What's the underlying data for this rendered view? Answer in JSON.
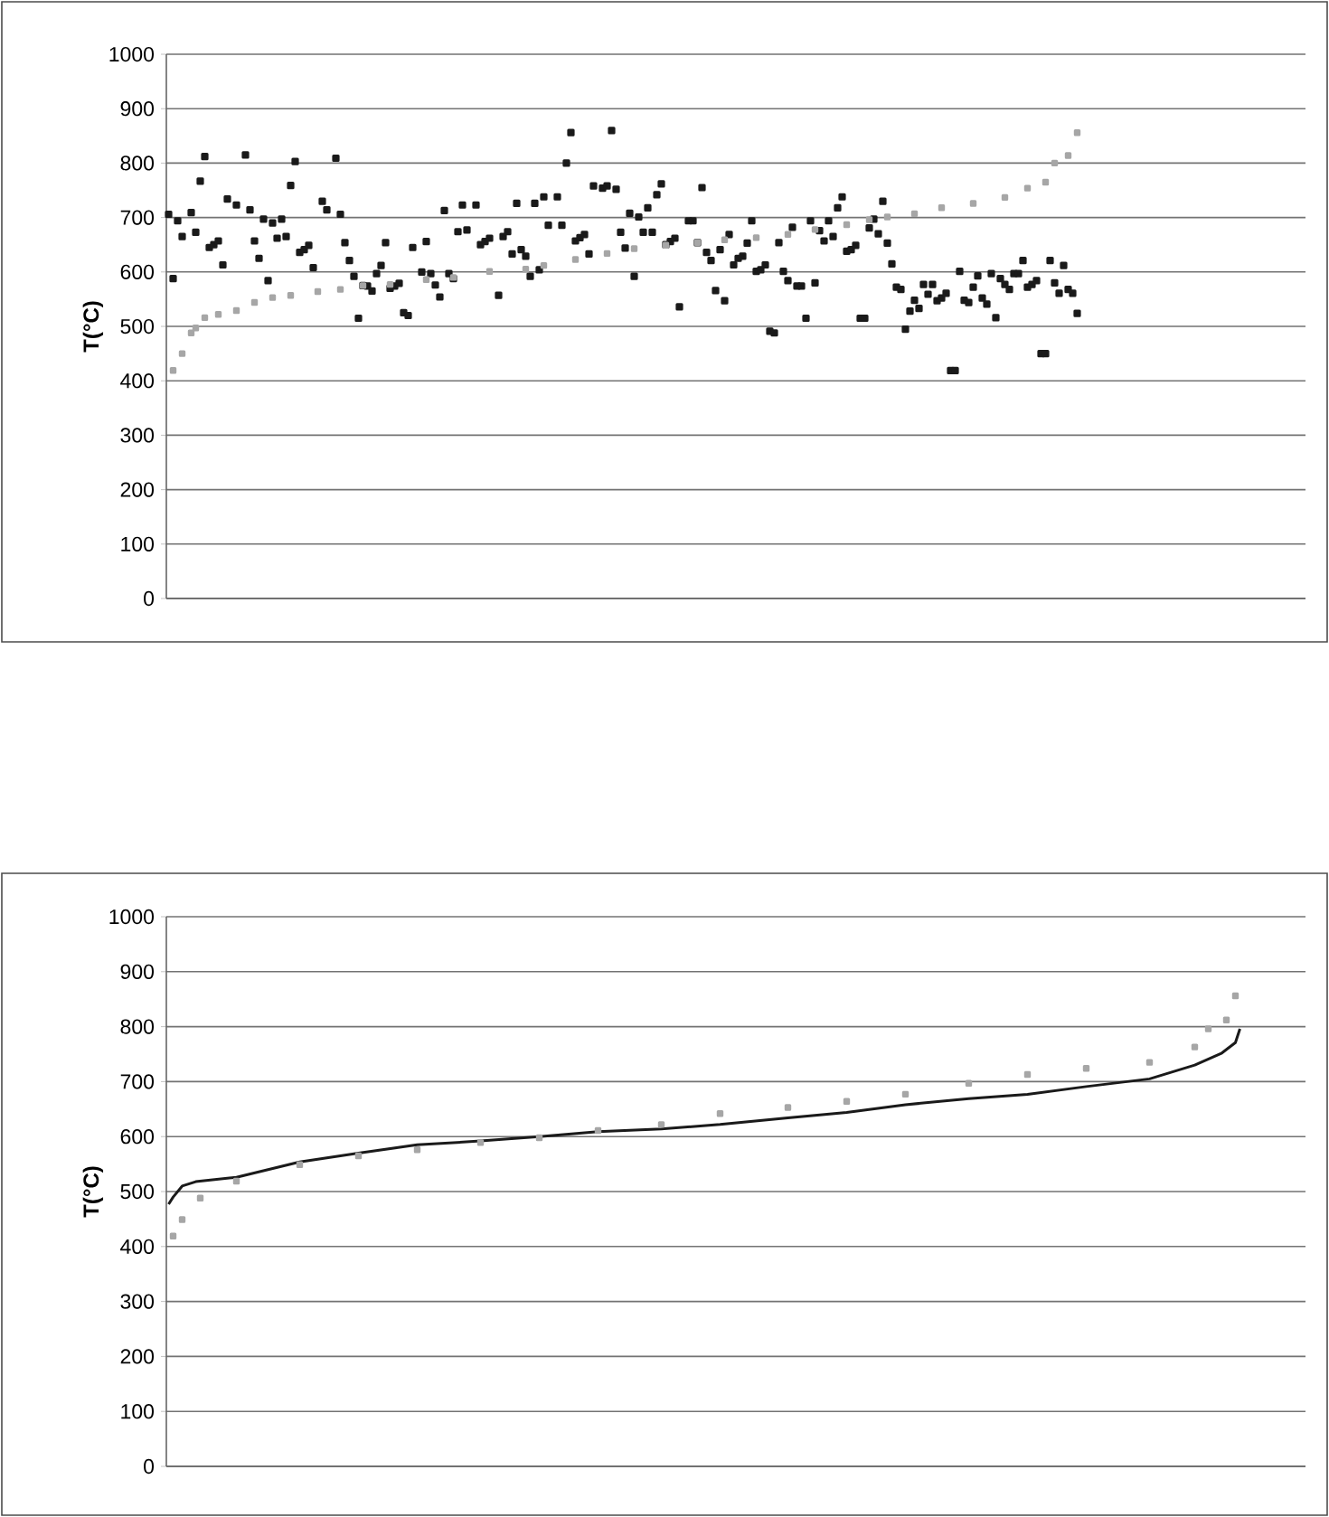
{
  "chart_data": [
    {
      "type": "scatter",
      "ylabel": "T(°C)",
      "ylim": [
        0,
        1000
      ],
      "yticks": [
        0,
        100,
        200,
        300,
        400,
        500,
        600,
        700,
        800,
        900,
        1000
      ],
      "grid": "y",
      "tick_labels": "y",
      "marker": "square",
      "categories": [
        null,
        null,
        null,
        null,
        null,
        null,
        null,
        null,
        null,
        null,
        null,
        null,
        null,
        null,
        null,
        null,
        null,
        null,
        null,
        null,
        null,
        null,
        null,
        null,
        null,
        null,
        null,
        null,
        null,
        null,
        null,
        null,
        null,
        null,
        null,
        null,
        null,
        null,
        null,
        null,
        null,
        null,
        null,
        null,
        null,
        null,
        null,
        null,
        null,
        null,
        null,
        null,
        null,
        null,
        null,
        null,
        null,
        null,
        null,
        null,
        null,
        null,
        null,
        null,
        null,
        null,
        null,
        null,
        null,
        null,
        null,
        null,
        null,
        null,
        null,
        null,
        null,
        null,
        null,
        null,
        null,
        null,
        null,
        null,
        null,
        null,
        null,
        null,
        null,
        null,
        null,
        null,
        null,
        null,
        null,
        null,
        null,
        null,
        null,
        null,
        null,
        null,
        null,
        null,
        null,
        null,
        null,
        null,
        null,
        null,
        null,
        null,
        null,
        null,
        null,
        null,
        null,
        null,
        null,
        null,
        null,
        null,
        null,
        null,
        null,
        null,
        null,
        null,
        null,
        null,
        null,
        null,
        null,
        null,
        null,
        null,
        null,
        null,
        null,
        null,
        null,
        null,
        null,
        null,
        null,
        null,
        null,
        null,
        null,
        null,
        null,
        null,
        null,
        null,
        null,
        null,
        null,
        null,
        null,
        null,
        null,
        null,
        null,
        null,
        null,
        null,
        null,
        null,
        null,
        null,
        null,
        null,
        null,
        null,
        null,
        null,
        null,
        null,
        null,
        null,
        null,
        null,
        null,
        null,
        null,
        null,
        null,
        null,
        null,
        null,
        null,
        null,
        null,
        null,
        null,
        null,
        null,
        null,
        null,
        null,
        null,
        null,
        null,
        null,
        null,
        null,
        null,
        null,
        null,
        null,
        null,
        null,
        null,
        null,
        null,
        null,
        null,
        null,
        null,
        null,
        null,
        null,
        null,
        null,
        null,
        null,
        null,
        null,
        null,
        null,
        null,
        null,
        null,
        null,
        null,
        null,
        null,
        null,
        null,
        null,
        null,
        null,
        null,
        null,
        null,
        null,
        null,
        null,
        null,
        null,
        null,
        null
      ],
      "series": [
        {
          "color": "#1a1a1a",
          "values": [
            706,
            588,
            694,
            665,
            null,
            709,
            673,
            767,
            812,
            645,
            650,
            657,
            613,
            734,
            null,
            723,
            null,
            815,
            714,
            657,
            625,
            697,
            584,
            690,
            662,
            697,
            665,
            759,
            803,
            636,
            641,
            649,
            608,
            null,
            730,
            714,
            null,
            809,
            706,
            654,
            621,
            592,
            515,
            575,
            574,
            565,
            597,
            612,
            654,
            570,
            574,
            579,
            525,
            520,
            645,
            null,
            600,
            656,
            597,
            576,
            554,
            713,
            597,
            588,
            674,
            723,
            677,
            null,
            723,
            650,
            656,
            662,
            null,
            557,
            665,
            674,
            633,
            726,
            641,
            629,
            592,
            726,
            604,
            738,
            686,
            null,
            738,
            686,
            800,
            856,
            657,
            663,
            669,
            633,
            758,
            null,
            754,
            758,
            860,
            752,
            673,
            644,
            708,
            592,
            701,
            673,
            718,
            673,
            742,
            762,
            650,
            656,
            662,
            536,
            null,
            694,
            694,
            654,
            755,
            636,
            621,
            566,
            641,
            547,
            669,
            613,
            625,
            629,
            653,
            694,
            601,
            604,
            613,
            491,
            488,
            654,
            601,
            584,
            682,
            574,
            574,
            515,
            694,
            580,
            676,
            657,
            694,
            665,
            718,
            738,
            638,
            641,
            649,
            515,
            515,
            681,
            697,
            670,
            730,
            653,
            615,
            572,
            568,
            495,
            528,
            548,
            533,
            577,
            559,
            577,
            547,
            552,
            561,
            419,
            419,
            601,
            548,
            544,
            572,
            593,
            552,
            541,
            597,
            516,
            588,
            577,
            568,
            597,
            597,
            621,
            572,
            577,
            584,
            450,
            450,
            621,
            580,
            561,
            612,
            568,
            561,
            524,
            null,
            null,
            null,
            null,
            null,
            null,
            null,
            null,
            null,
            null,
            null,
            null,
            null,
            null,
            null,
            null,
            null,
            null,
            null,
            null,
            null,
            null,
            null,
            null,
            null,
            null,
            null,
            null,
            null,
            null,
            null,
            null,
            null,
            null,
            null,
            null,
            null,
            null,
            null,
            null,
            null,
            null,
            null,
            null,
            null,
            null,
            null,
            null,
            null,
            null
          ]
        },
        {
          "color": "#a6a6a6",
          "values": [
            null,
            419,
            null,
            450,
            null,
            488,
            497,
            null,
            516,
            null,
            null,
            522,
            null,
            null,
            null,
            529,
            null,
            null,
            null,
            544,
            null,
            null,
            null,
            553,
            null,
            null,
            null,
            557,
            null,
            null,
            null,
            null,
            null,
            564,
            null,
            null,
            null,
            null,
            568,
            null,
            null,
            null,
            null,
            575,
            null,
            null,
            null,
            null,
            null,
            577,
            null,
            null,
            null,
            null,
            null,
            null,
            null,
            586,
            null,
            null,
            null,
            null,
            null,
            590,
            null,
            null,
            null,
            null,
            null,
            null,
            null,
            601,
            null,
            null,
            null,
            null,
            null,
            null,
            null,
            605,
            null,
            null,
            null,
            612,
            null,
            null,
            null,
            null,
            null,
            null,
            623,
            null,
            null,
            null,
            null,
            null,
            null,
            634,
            null,
            null,
            null,
            null,
            null,
            643,
            null,
            null,
            null,
            null,
            null,
            null,
            649,
            null,
            null,
            null,
            null,
            null,
            null,
            654,
            null,
            null,
            null,
            null,
            null,
            659,
            null,
            null,
            null,
            null,
            null,
            null,
            663,
            null,
            null,
            null,
            null,
            null,
            null,
            669,
            null,
            null,
            null,
            null,
            null,
            678,
            null,
            null,
            null,
            null,
            null,
            null,
            687,
            null,
            null,
            null,
            null,
            696,
            null,
            null,
            null,
            701,
            null,
            null,
            null,
            null,
            null,
            707,
            null,
            null,
            null,
            null,
            null,
            718,
            null,
            null,
            null,
            null,
            null,
            null,
            726,
            null,
            null,
            null,
            null,
            null,
            null,
            737,
            null,
            null,
            null,
            null,
            754,
            null,
            null,
            null,
            765,
            null,
            800,
            null,
            null,
            814,
            null,
            856,
            null,
            null,
            null,
            null,
            null,
            null,
            null,
            null,
            null,
            null,
            null,
            null,
            null,
            null,
            null,
            null,
            null,
            null,
            null,
            null,
            null,
            null,
            null,
            null,
            null,
            null,
            null,
            null,
            null,
            null,
            null,
            null,
            null,
            null,
            null,
            null,
            null,
            null,
            null,
            null,
            null,
            null,
            null,
            null,
            null,
            null,
            null,
            null,
            null,
            null
          ]
        }
      ]
    },
    {
      "type": "scatter",
      "ylabel": "T(°C)",
      "ylim": [
        0,
        1000
      ],
      "yticks": [
        0,
        100,
        200,
        300,
        400,
        500,
        600,
        700,
        800,
        900,
        1000
      ],
      "grid": "y",
      "tick_labels": "y",
      "marker": "square",
      "categories": [
        null,
        null,
        null,
        null,
        null,
        null,
        null,
        null,
        null,
        null,
        null,
        null,
        null,
        null,
        null,
        null,
        null,
        null,
        null,
        null,
        null,
        null,
        null,
        null,
        null,
        null,
        null,
        null,
        null,
        null,
        null,
        null,
        null,
        null,
        null,
        null,
        null,
        null,
        null,
        null,
        null,
        null,
        null,
        null,
        null,
        null,
        null,
        null,
        null,
        null,
        null,
        null,
        null,
        null,
        null,
        null,
        null,
        null,
        null,
        null,
        null,
        null,
        null,
        null,
        null,
        null,
        null,
        null,
        null,
        null,
        null,
        null,
        null,
        null,
        null,
        null,
        null,
        null,
        null,
        null,
        null,
        null,
        null,
        null,
        null,
        null,
        null,
        null,
        null,
        null,
        null,
        null,
        null,
        null,
        null,
        null,
        null,
        null,
        null,
        null,
        null,
        null,
        null,
        null,
        null,
        null,
        null,
        null,
        null,
        null,
        null,
        null,
        null,
        null,
        null,
        null,
        null,
        null,
        null,
        null,
        null,
        null,
        null,
        null,
        null,
        null,
        null,
        null,
        null,
        null,
        null,
        null,
        null,
        null,
        null,
        null,
        null,
        null,
        null,
        null,
        null,
        null,
        null,
        null,
        null,
        null,
        null,
        null,
        null,
        null,
        null,
        null,
        null,
        null,
        null,
        null,
        null,
        null,
        null,
        null,
        null,
        null,
        null,
        null,
        null,
        null,
        null,
        null,
        null,
        null,
        null,
        null,
        null,
        null,
        null,
        null,
        null,
        null,
        null,
        null,
        null,
        null,
        null,
        null,
        null,
        null,
        null,
        null,
        null,
        null,
        null,
        null,
        null,
        null,
        null,
        null,
        null,
        null,
        null,
        null,
        null,
        null,
        null,
        null,
        null,
        null,
        null,
        null,
        null,
        null,
        null,
        null,
        null,
        null,
        null,
        null,
        null,
        null,
        null,
        null,
        null,
        null,
        null,
        null,
        null,
        null,
        null,
        null,
        null,
        null,
        null,
        null,
        null,
        null,
        null,
        null,
        null,
        null,
        null,
        null,
        null,
        null,
        null,
        null,
        null,
        null,
        null,
        null,
        null,
        null,
        null,
        null
      ],
      "series": [
        {
          "color": "#a6a6a6",
          "values": [
            null,
            419,
            null,
            449,
            null,
            null,
            null,
            488,
            null,
            null,
            null,
            null,
            null,
            null,
            null,
            519,
            null,
            null,
            null,
            null,
            null,
            null,
            null,
            null,
            null,
            null,
            null,
            null,
            null,
            549,
            null,
            null,
            null,
            null,
            null,
            null,
            null,
            null,
            null,
            null,
            null,
            null,
            565,
            null,
            null,
            null,
            null,
            null,
            null,
            null,
            null,
            null,
            null,
            null,
            null,
            576,
            null,
            null,
            null,
            null,
            null,
            null,
            null,
            null,
            null,
            null,
            null,
            null,
            null,
            589,
            null,
            null,
            null,
            null,
            null,
            null,
            null,
            null,
            null,
            null,
            null,
            null,
            598,
            null,
            null,
            null,
            null,
            null,
            null,
            null,
            null,
            null,
            null,
            null,
            null,
            611,
            null,
            null,
            null,
            null,
            null,
            null,
            null,
            null,
            null,
            null,
            null,
            null,
            null,
            622,
            null,
            null,
            null,
            null,
            null,
            null,
            null,
            null,
            null,
            null,
            null,
            null,
            642,
            null,
            null,
            null,
            null,
            null,
            null,
            null,
            null,
            null,
            null,
            null,
            null,
            null,
            null,
            653,
            null,
            null,
            null,
            null,
            null,
            null,
            null,
            null,
            null,
            null,
            null,
            null,
            664,
            null,
            null,
            null,
            null,
            null,
            null,
            null,
            null,
            null,
            null,
            null,
            null,
            677,
            null,
            null,
            null,
            null,
            null,
            null,
            null,
            null,
            null,
            null,
            null,
            null,
            null,
            697,
            null,
            null,
            null,
            null,
            null,
            null,
            null,
            null,
            null,
            null,
            null,
            null,
            713,
            null,
            null,
            null,
            null,
            null,
            null,
            null,
            null,
            null,
            null,
            null,
            null,
            724,
            null,
            null,
            null,
            null,
            null,
            null,
            null,
            null,
            null,
            null,
            null,
            null,
            null,
            735,
            null,
            null,
            null,
            null,
            null,
            null,
            null,
            null,
            null,
            763,
            null,
            null,
            796,
            null,
            null,
            null,
            812,
            null,
            856,
            null,
            null,
            null,
            null,
            null,
            null,
            null,
            null,
            null,
            null,
            null,
            null,
            null,
            null,
            null
          ]
        },
        {
          "color": "#1a1a1a",
          "type": "line",
          "marker": "none",
          "values": [
            477,
            490,
            null,
            510,
            null,
            null,
            518,
            null,
            null,
            null,
            null,
            null,
            null,
            null,
            null,
            526,
            null,
            null,
            null,
            null,
            null,
            null,
            null,
            null,
            null,
            null,
            null,
            null,
            null,
            554,
            null,
            null,
            null,
            null,
            null,
            null,
            null,
            null,
            null,
            null,
            null,
            null,
            570,
            null,
            null,
            null,
            null,
            null,
            null,
            null,
            null,
            null,
            null,
            null,
            null,
            585,
            null,
            null,
            null,
            null,
            null,
            null,
            null,
            null,
            null,
            null,
            null,
            null,
            null,
            592,
            null,
            null,
            null,
            null,
            null,
            null,
            null,
            null,
            null,
            null,
            null,
            null,
            600,
            null,
            null,
            null,
            null,
            null,
            null,
            null,
            null,
            null,
            null,
            null,
            null,
            609,
            null,
            null,
            null,
            null,
            null,
            null,
            null,
            null,
            null,
            null,
            null,
            null,
            null,
            614,
            null,
            null,
            null,
            null,
            null,
            null,
            null,
            null,
            null,
            null,
            null,
            null,
            622,
            null,
            null,
            null,
            null,
            null,
            null,
            null,
            null,
            null,
            null,
            null,
            null,
            null,
            null,
            634,
            null,
            null,
            null,
            null,
            null,
            null,
            null,
            null,
            null,
            null,
            null,
            null,
            644,
            null,
            null,
            null,
            null,
            null,
            null,
            null,
            null,
            null,
            null,
            null,
            null,
            658,
            null,
            null,
            null,
            null,
            null,
            null,
            null,
            null,
            null,
            null,
            null,
            null,
            null,
            669,
            null,
            null,
            null,
            null,
            null,
            null,
            null,
            null,
            null,
            null,
            null,
            null,
            677,
            null,
            null,
            null,
            null,
            null,
            null,
            null,
            null,
            null,
            null,
            null,
            null,
            691,
            null,
            null,
            null,
            null,
            null,
            null,
            null,
            null,
            null,
            null,
            null,
            null,
            null,
            705,
            null,
            null,
            null,
            null,
            null,
            null,
            null,
            null,
            null,
            730,
            null,
            null,
            null,
            null,
            null,
            752,
            null,
            null,
            771,
            796,
            null,
            null,
            null,
            null,
            null,
            null,
            null,
            null,
            null,
            null,
            null,
            null,
            null,
            null
          ]
        }
      ]
    }
  ]
}
